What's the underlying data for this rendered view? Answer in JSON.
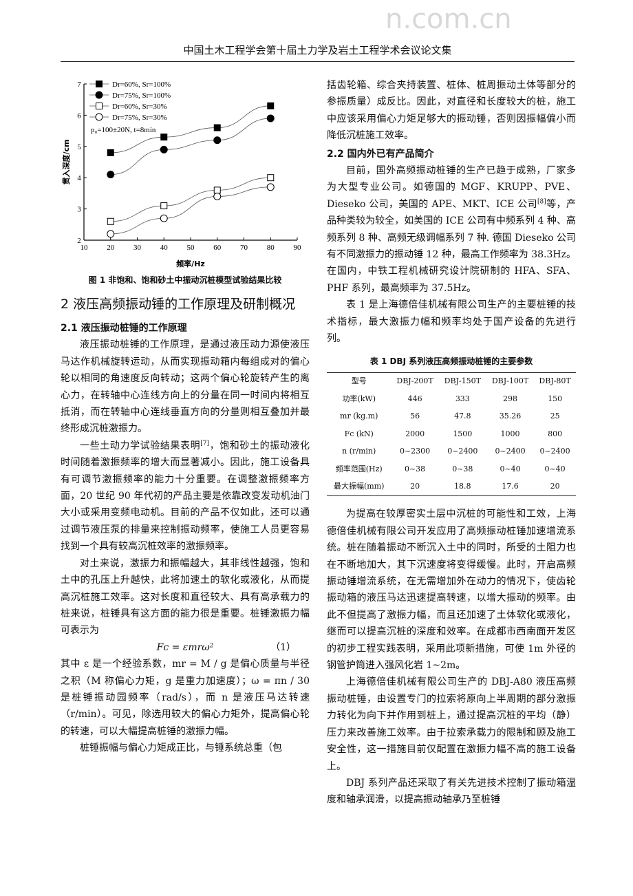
{
  "header": "中国土木工程学会第十届土力学及岩土工程学术会议论文集",
  "watermark": "n.com.cn",
  "figure1": {
    "caption": "图 1  非饱和、饱和砂土中振动沉桩模型试验结果比较",
    "note": "p₀=100±20N, t=8min"
  },
  "chart_data": {
    "type": "line",
    "xlabel": "频率/Hz",
    "ylabel": "贯入深度/cm",
    "xlim": [
      10,
      90
    ],
    "ylim": [
      2,
      7
    ],
    "xticks": [
      10,
      20,
      30,
      40,
      50,
      60,
      70,
      80,
      90
    ],
    "yticks": [
      2,
      3,
      4,
      5,
      6,
      7
    ],
    "x": [
      20,
      40,
      60,
      80
    ],
    "legend_placement": "top-left",
    "grid": false,
    "series": [
      {
        "name": "Dr=60%, Sr=100%",
        "marker": "filled-square",
        "values": [
          4.8,
          5.3,
          5.6,
          6.3
        ]
      },
      {
        "name": "Dr=75%, Sr=100%",
        "marker": "filled-circle",
        "values": [
          4.1,
          4.9,
          5.2,
          5.9
        ]
      },
      {
        "name": "Dr=60%, Sr=30%",
        "marker": "open-square",
        "values": [
          2.6,
          3.1,
          3.6,
          4.0
        ]
      },
      {
        "name": "Dr=75%, Sr=30%",
        "marker": "open-circle",
        "values": [
          2.2,
          2.7,
          3.4,
          3.7
        ]
      }
    ],
    "annotation": "p₀=100±20N, t=8min"
  },
  "left": {
    "h1": "2 液压高频振动锤的工作原理及研制概况",
    "h2": "2.1 液压振动桩锤的工作原理",
    "p1": "液压振动桩锤的工作原理，是通过液压动力源使液压马达作机械旋转运动，从而实现振动箱内每组成对的偏心轮以相同的角速度反向转动；这两个偏心轮旋转产生的离心力，在转轴中心连线方向上的分量在同一时间内将相互抵消，而在转轴中心连线垂直方向的分量则相互叠加并最终形成沉桩激振力。",
    "p2a": "一些土动力学试验结果表明",
    "p2ref": "[7]",
    "p2b": "，饱和砂土的振动液化时间随着激振频率的增大而显著减小。因此，施工设备具有可调节激振频率的能力十分重要。在调整激振频率方面，20 世纪 90 年代初的产品主要是依靠改变发动机油门大小或采用变频电动机。目前的产品不仅如此，还可以通过调节液压泵的排量来控制振动频率，使施工人员更容易找到一个具有较高沉桩效率的激振频率。",
    "p3": "对土来说，激振力和振幅越大，其非线性越强，饱和土中的孔压上升越快，此将加速土的软化或液化，从而提高沉桩施工效率。这对长度和直径较大、具有高承载力的桩来说，桩锤具有这方面的能力很是重要。桩锤激振力幅可表示为",
    "formula": "Fc = εmrω²",
    "formula_no": "（1）",
    "p4": "其中 ε 是一个经验系数，mr = M / g 是偏心质量与半径之积（M 称偏心力矩，g 是重力加速度）；ω = πn / 30 是桩锤振动园频率（rad/s），而 n 是液压马达转速（r/min）。可见，除选用较大的偏心力矩外，提高偏心轮的转速，可以大幅提高桩锤的激振力幅。",
    "p5": "桩锤振幅与偏心力矩成正比，与锤系统总重（包"
  },
  "right": {
    "p1": "括齿轮箱、综合夹持装置、桩体、桩周振动土体等部分的参振质量）成反比。因此，对直径和长度较大的桩，施工中应该采用偏心力矩足够大的振动锤，否则因振幅偏小而降低沉桩施工效率。",
    "h2": "2.2  国内外已有产品简介",
    "p2a": "目前，国外高频振动桩锤的生产已趋于成熟，厂家多为大型专业公司。如德国的 MGF、KRUPP、PVE、Dieseko 公司，美国的 APE、MKT、ICE 公司",
    "p2ref": "[8]",
    "p2b": "等，产品种类较为较全，如美国的 ICE 公司有中频系列 4 种、高频系列 8 种、高频无级调幅系列 7 种. 德国 Dieseko 公司有不同激振力的振动锤 12 种，最高工作频率为 38.3Hz。在国内，中铁工程机械研究设计院研制的 HFA、SFA、PHF 系列，最高频率为 37.5Hz。",
    "p3": "表 1 是上海德倍佳机械有限公司生产的主要桩锤的技术指标，最大激振力幅和频率均处于国产设备的先进行列。",
    "table": {
      "caption": "表 1   DBJ 系列液压高频振动桩锤的主要参数",
      "header": [
        "型号",
        "DBJ-200T",
        "DBJ-150T",
        "DBJ-100T",
        "DBJ-80T"
      ],
      "rows": [
        [
          "功率(kW)",
          "446",
          "333",
          "298",
          "150"
        ],
        [
          "mr (kg.m)",
          "56",
          "47.8",
          "35.26",
          "25"
        ],
        [
          "Fc (kN)",
          "2000",
          "1500",
          "1000",
          "800"
        ],
        [
          "n (r/min)",
          "0~2300",
          "0~2400",
          "0~2400",
          "0~2400"
        ],
        [
          "频率范围(Hz)",
          "0~38",
          "0~38",
          "0~40",
          "0~40"
        ],
        [
          "最大振幅(mm)",
          "20",
          "18.8",
          "17.6",
          "20"
        ]
      ]
    },
    "p4": "为提高在较厚密实土层中沉桩的可能性和工效，上海德倍佳机械有限公司开发应用了高频振动桩锤加速增流系统。桩在随着振动不断沉入土中的同时，所受的土阻力也在不断地加大，其下沉速度将变得缓慢。此时，开启高频振动锤增流系统，在无需增加外在动力的情况下，使齿轮振动箱的液压马达迅速提高转速，以增大振动的频率。由此不但提高了激振力幅，而且还加速了土体软化或液化，继而可以提高沉桩的深度和效率。在成都市西南面开发区的初步工程实践表明，采用此项新措施，可使 1m 外径的钢管护筒进入强风化岩 1~2m。",
    "p5": "上海德倍佳机械有限公司生产的 DBJ-A80 液压高频振动桩锤，由设置专门的拉索将原向上半周期的部分激振力转化为向下并作用到桩上，通过提高沉桩的平均（静）压力来改善施工效率。由于拉索承载力的限制和顾及施工安全性，这一措施目前仅配置在激振力幅不高的施工设备上。",
    "p6": "DBJ 系列产品还采取了有关先进技术控制了振动箱温度和轴承润滑，以提高振动轴承乃至桩锤"
  }
}
